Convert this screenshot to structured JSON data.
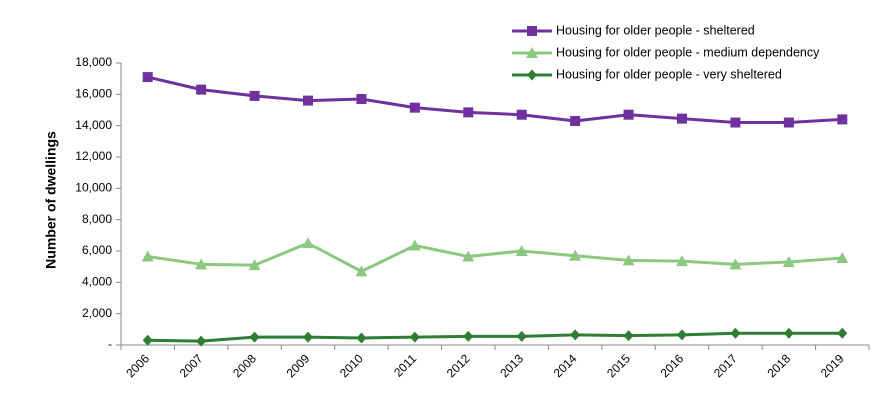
{
  "chart_data": {
    "type": "line",
    "title": "",
    "xlabel": "",
    "ylabel": "Number of dwellings",
    "ylim": [
      0,
      18000
    ],
    "yticks": [
      0,
      2000,
      4000,
      6000,
      8000,
      10000,
      12000,
      14000,
      16000,
      18000
    ],
    "ytick_labels": [
      "-",
      "2,000",
      "4,000",
      "6,000",
      "8,000",
      "10,000",
      "12,000",
      "14,000",
      "16,000",
      "18,000"
    ],
    "categories": [
      "2006",
      "2007",
      "2008",
      "2009",
      "2010",
      "2011",
      "2012",
      "2013",
      "2014",
      "2015",
      "2016",
      "2017",
      "2018",
      "2019"
    ],
    "grid": false,
    "legend_position": "top-right",
    "series": [
      {
        "name": "Housing for older people - sheltered",
        "color": "#7030A0",
        "marker": "square",
        "values": [
          17100,
          16300,
          15900,
          15600,
          15700,
          15150,
          14850,
          14700,
          14300,
          14700,
          14450,
          14200,
          14200,
          14400
        ]
      },
      {
        "name": "Housing for older people - medium dependency",
        "color": "#8CC87F",
        "marker": "triangle",
        "values": [
          5650,
          5150,
          5100,
          6500,
          4700,
          6350,
          5650,
          6000,
          5700,
          5400,
          5350,
          5150,
          5300,
          5550
        ]
      },
      {
        "name": "Housing for older people - very sheltered",
        "color": "#2E7D32",
        "marker": "diamond",
        "values": [
          300,
          250,
          500,
          500,
          450,
          500,
          550,
          550,
          650,
          600,
          650,
          750,
          750,
          750
        ]
      }
    ]
  }
}
